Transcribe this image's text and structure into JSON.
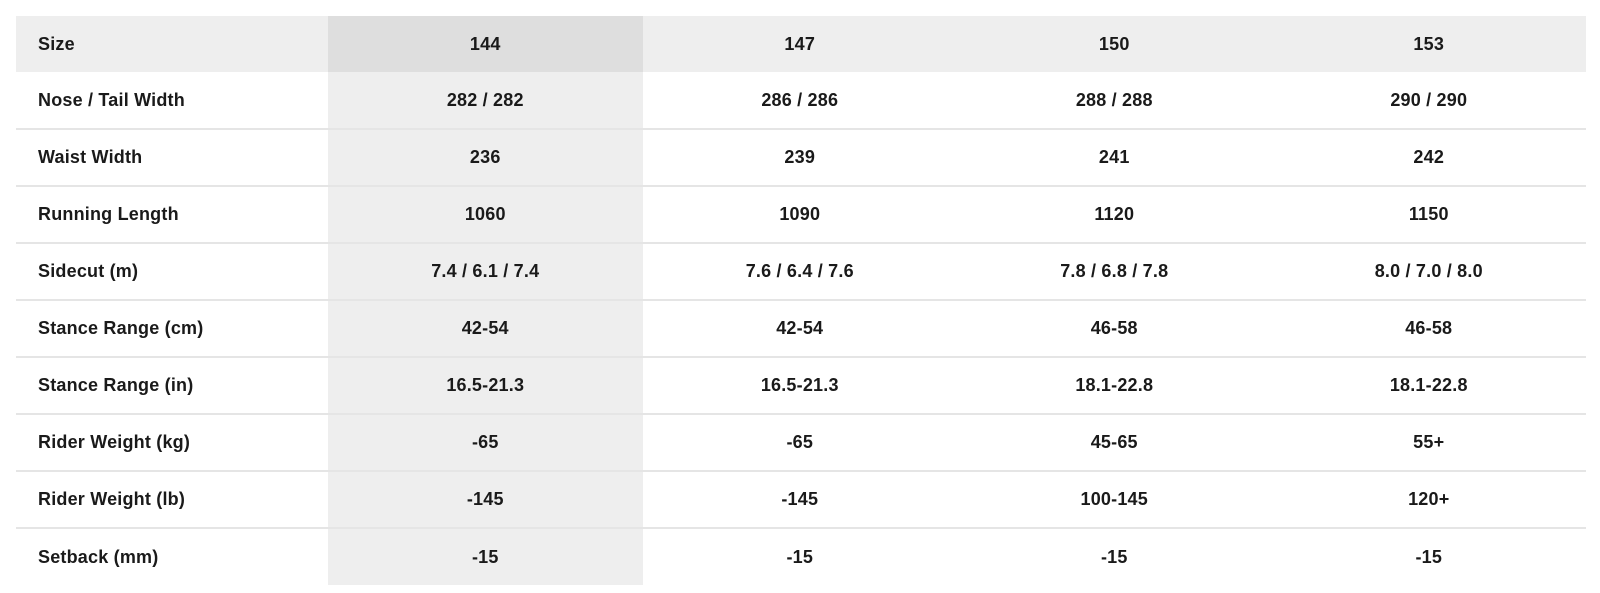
{
  "table": {
    "header": {
      "label": "Size",
      "sizes": [
        "144",
        "147",
        "150",
        "153"
      ],
      "selected_size": "144"
    },
    "rows": [
      {
        "label": "Nose / Tail Width",
        "values": [
          "282 / 282",
          "286 / 286",
          "288 / 288",
          "290 / 290"
        ]
      },
      {
        "label": "Waist Width",
        "values": [
          "236",
          "239",
          "241",
          "242"
        ]
      },
      {
        "label": "Running Length",
        "values": [
          "1060",
          "1090",
          "1120",
          "1150"
        ]
      },
      {
        "label": "Sidecut (m)",
        "values": [
          "7.4 / 6.1 / 7.4",
          "7.6 / 6.4 / 7.6",
          "7.8 / 6.8 / 7.8",
          "8.0 / 7.0 / 8.0"
        ]
      },
      {
        "label": "Stance Range (cm)",
        "values": [
          "42-54",
          "42-54",
          "46-58",
          "46-58"
        ]
      },
      {
        "label": "Stance Range (in)",
        "values": [
          "16.5-21.3",
          "16.5-21.3",
          "18.1-22.8",
          "18.1-22.8"
        ]
      },
      {
        "label": "Rider Weight (kg)",
        "values": [
          "-65",
          "-65",
          "45-65",
          "55+"
        ]
      },
      {
        "label": "Rider Weight (lb)",
        "values": [
          "-145",
          "-145",
          "100-145",
          "120+"
        ]
      },
      {
        "label": "Setback (mm)",
        "values": [
          "-15",
          "-15",
          "-15",
          "-15"
        ]
      }
    ],
    "colors": {
      "header_bg": "#eeeeee",
      "header_selected_bg": "#dedede",
      "selected_column_bg": "#eeeeee",
      "row_divider": "#e5e5e5",
      "text": "#1a1a1a",
      "page_bg": "#ffffff"
    }
  }
}
